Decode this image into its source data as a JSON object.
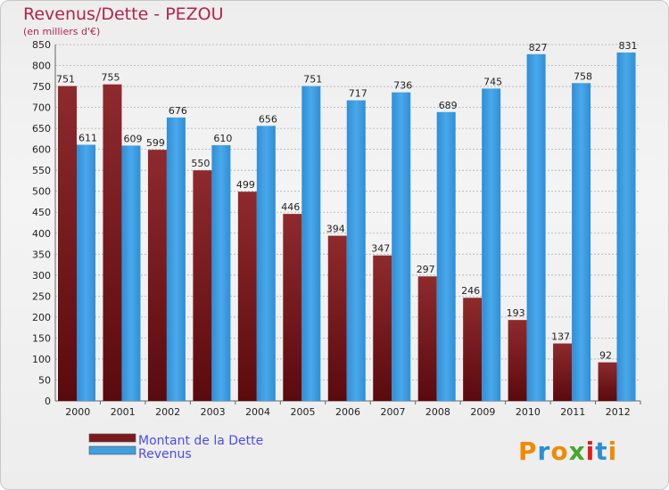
{
  "header": {
    "title": "Revenus/Dette - PEZOU",
    "subtitle": "(en milliers d'€)"
  },
  "logo": {
    "text": "Proxiti",
    "letter_colors": [
      "#f08a00",
      "#2c8fd6",
      "#f08a00",
      "#49a62c",
      "#e11e1e",
      "#2c8fd6",
      "#f08a00"
    ]
  },
  "colors": {
    "dette": "#7a1a1e",
    "revenus": "#3f9fe0",
    "grid": "#b0b0b0",
    "axis_text": "#222222"
  },
  "chart_data": {
    "type": "bar",
    "title": "Revenus/Dette - PEZOU",
    "subtitle": "(en milliers d'€)",
    "categories": [
      "2000",
      "2001",
      "2002",
      "2003",
      "2004",
      "2005",
      "2006",
      "2007",
      "2008",
      "2009",
      "2010",
      "2011",
      "2012"
    ],
    "series": [
      {
        "name": "Montant de la Dette",
        "values": [
          751,
          755,
          599,
          550,
          499,
          446,
          394,
          347,
          297,
          246,
          193,
          137,
          92
        ]
      },
      {
        "name": "Revenus",
        "values": [
          611,
          609,
          676,
          610,
          656,
          751,
          717,
          736,
          689,
          745,
          827,
          758,
          831
        ]
      }
    ],
    "ylim": [
      0,
      850
    ],
    "yticks": [
      0,
      50,
      100,
      150,
      200,
      250,
      300,
      350,
      400,
      450,
      500,
      550,
      600,
      650,
      700,
      750,
      800,
      850
    ],
    "grid": true,
    "legend_position": "bottom-left"
  }
}
